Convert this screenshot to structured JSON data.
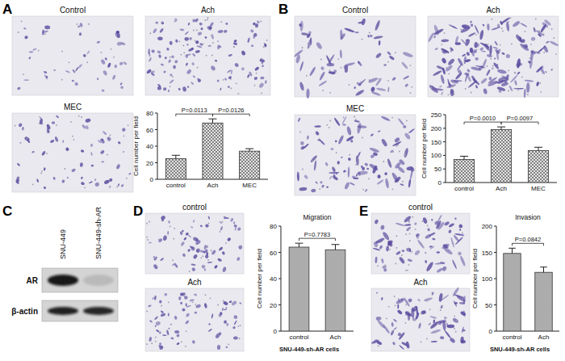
{
  "chart_data": [
    {
      "type": "bar",
      "categories": [
        "control",
        "Ach",
        "MEC"
      ],
      "values": [
        25,
        68,
        34
      ],
      "errors": [
        4,
        5,
        3
      ],
      "ylim": [
        0,
        80
      ],
      "yticks": [
        0,
        20,
        40,
        60,
        80
      ],
      "y_label": "Cell number per field",
      "color": "#555555",
      "annotations": [
        {
          "text": "P=0.0113",
          "between": [
            0,
            1
          ]
        },
        {
          "text": "P=0.0126",
          "between": [
            1,
            2
          ]
        }
      ]
    },
    {
      "type": "bar",
      "categories": [
        "control",
        "Ach",
        "MEC"
      ],
      "values": [
        85,
        195,
        118
      ],
      "errors": [
        12,
        10,
        12
      ],
      "ylim": [
        0,
        250
      ],
      "yticks": [
        0,
        50,
        100,
        150,
        200,
        250
      ],
      "y_label": "Cell number per field",
      "color": "#555555",
      "annotations": [
        {
          "text": "P=0.0010",
          "between": [
            0,
            1
          ]
        },
        {
          "text": "P=0.0097",
          "between": [
            1,
            2
          ]
        }
      ]
    },
    {
      "type": "bar",
      "title": "Migration",
      "x_label": "SNU-449-sh-AR cells",
      "categories": [
        "control",
        "Ach"
      ],
      "values": [
        64,
        62
      ],
      "errors": [
        3,
        4
      ],
      "ylim": [
        0,
        80
      ],
      "yticks": [
        0,
        20,
        40,
        60,
        80
      ],
      "y_label": "Cell number per field",
      "color": "#555555",
      "annotations": [
        {
          "text": "P=0.7783",
          "between": [
            0,
            1
          ]
        }
      ]
    },
    {
      "type": "bar",
      "title": "Invasion",
      "x_label": "SNU-449-sh-AR cells",
      "categories": [
        "control",
        "Ach"
      ],
      "values": [
        148,
        112
      ],
      "errors": [
        10,
        10
      ],
      "ylim": [
        0,
        200
      ],
      "yticks": [
        0,
        50,
        100,
        150,
        200
      ],
      "y_label": "Cell number per field",
      "color": "#555555",
      "annotations": [
        {
          "text": "P=0.0842",
          "between": [
            0,
            1
          ]
        }
      ]
    }
  ],
  "panels": [
    {
      "letter": "A",
      "image_labels": [
        "Control",
        "Ach",
        "MEC"
      ]
    },
    {
      "letter": "B",
      "image_labels": [
        "Control",
        "Ach",
        "MEC"
      ]
    },
    {
      "letter": "C",
      "lanes": [
        "SNU-449",
        "SNU-449-sh-AR"
      ],
      "bands": [
        "AR",
        "β-actin"
      ]
    },
    {
      "letter": "D",
      "image_labels": [
        "control",
        "Ach"
      ]
    },
    {
      "letter": "E",
      "image_labels": [
        "control",
        "Ach"
      ]
    }
  ]
}
